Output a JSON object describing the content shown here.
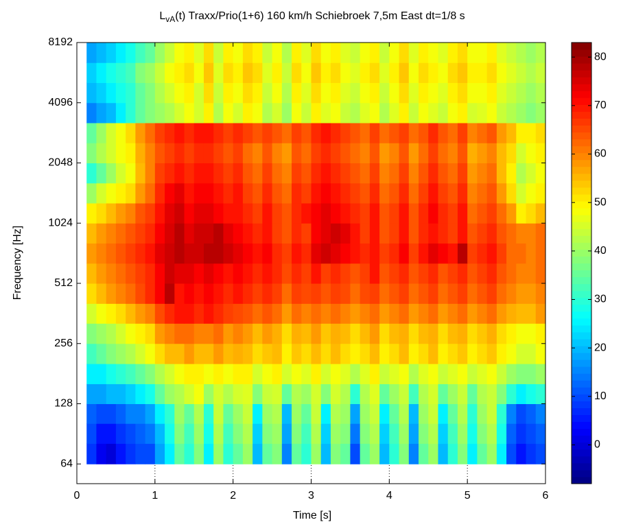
{
  "chart_data": {
    "type": "heatmap",
    "title": {
      "main": "L",
      "sub": "vA",
      "rest": "(t) Traxx/Prio(1+6) 160 km/h Schiebroek 7,5m East dt=1/8 s"
    },
    "x_label": "Time [s]",
    "y_label": "Frequency [Hz]",
    "colormap": "jet",
    "y_scale": "log",
    "xlim": [
      0,
      6
    ],
    "xticks": [
      0,
      1,
      2,
      3,
      4,
      5,
      6
    ],
    "ylim": [
      51,
      8192
    ],
    "yticks": [
      64,
      128,
      256,
      512,
      1024,
      2048,
      4096,
      8192
    ],
    "clim": [
      -8,
      83
    ],
    "cticks": [
      0,
      10,
      20,
      30,
      40,
      50,
      60,
      70,
      80
    ],
    "x_edges": [
      0.125,
      0.25,
      0.375,
      0.5,
      0.625,
      0.75,
      0.875,
      1,
      1.125,
      1.25,
      1.375,
      1.5,
      1.625,
      1.75,
      1.875,
      2,
      2.125,
      2.25,
      2.375,
      2.5,
      2.625,
      2.75,
      2.875,
      3,
      3.125,
      3.25,
      3.375,
      3.5,
      3.625,
      3.75,
      3.875,
      4,
      4.125,
      4.25,
      4.375,
      4.5,
      4.625,
      4.75,
      4.875,
      5,
      5.125,
      5.25,
      5.375,
      5.5,
      5.625,
      5.75,
      5.875,
      6
    ],
    "y_edges": [
      64,
      81,
      102,
      128,
      161,
      203,
      256,
      323,
      406,
      512,
      645,
      813,
      1024,
      1290,
      1625,
      2048,
      2580,
      3251,
      4096,
      5161,
      6502,
      8192
    ],
    "z": [
      [
        8,
        2,
        0,
        5,
        8,
        10,
        10,
        18,
        25,
        35,
        30,
        38,
        25,
        40,
        30,
        35,
        40,
        20,
        35,
        38,
        15,
        35,
        30,
        40,
        20,
        38,
        35,
        10,
        35,
        40,
        20,
        30,
        38,
        15,
        35,
        40,
        20,
        30,
        38,
        25,
        35,
        40,
        25,
        10,
        5,
        8,
        10
      ],
      [
        10,
        5,
        5,
        8,
        10,
        12,
        14,
        20,
        28,
        38,
        32,
        40,
        28,
        42,
        32,
        38,
        42,
        22,
        38,
        40,
        18,
        38,
        32,
        42,
        22,
        40,
        38,
        14,
        38,
        42,
        22,
        32,
        40,
        18,
        38,
        42,
        22,
        32,
        40,
        28,
        38,
        42,
        28,
        12,
        8,
        10,
        12
      ],
      [
        12,
        10,
        10,
        12,
        15,
        15,
        18,
        25,
        30,
        40,
        35,
        42,
        30,
        44,
        35,
        40,
        44,
        25,
        40,
        42,
        20,
        40,
        35,
        44,
        25,
        42,
        40,
        18,
        40,
        44,
        25,
        35,
        42,
        20,
        40,
        44,
        25,
        35,
        42,
        30,
        40,
        44,
        30,
        15,
        10,
        12,
        15
      ],
      [
        18,
        18,
        20,
        20,
        22,
        25,
        28,
        35,
        40,
        42,
        45,
        48,
        40,
        45,
        42,
        45,
        46,
        38,
        44,
        45,
        35,
        42,
        40,
        45,
        38,
        45,
        42,
        30,
        42,
        46,
        35,
        40,
        44,
        32,
        42,
        45,
        35,
        40,
        44,
        35,
        42,
        44,
        38,
        30,
        25,
        28,
        30
      ],
      [
        25,
        25,
        28,
        30,
        32,
        35,
        38,
        42,
        45,
        48,
        50,
        50,
        48,
        50,
        48,
        50,
        50,
        45,
        48,
        50,
        45,
        48,
        46,
        50,
        45,
        48,
        46,
        42,
        46,
        50,
        44,
        46,
        48,
        42,
        46,
        48,
        44,
        46,
        48,
        44,
        46,
        48,
        44,
        40,
        38,
        38,
        40
      ],
      [
        32,
        35,
        38,
        40,
        42,
        45,
        48,
        52,
        55,
        55,
        58,
        55,
        55,
        58,
        55,
        56,
        55,
        52,
        54,
        55,
        50,
        54,
        52,
        55,
        52,
        55,
        52,
        50,
        52,
        55,
        50,
        52,
        55,
        50,
        52,
        55,
        50,
        52,
        54,
        50,
        52,
        54,
        50,
        48,
        45,
        45,
        48
      ],
      [
        38,
        40,
        42,
        45,
        48,
        50,
        52,
        58,
        60,
        62,
        62,
        60,
        60,
        62,
        58,
        60,
        58,
        55,
        58,
        56,
        52,
        56,
        55,
        58,
        54,
        56,
        55,
        52,
        55,
        58,
        52,
        55,
        56,
        52,
        55,
        56,
        52,
        55,
        56,
        52,
        54,
        56,
        52,
        50,
        48,
        48,
        50
      ],
      [
        45,
        48,
        50,
        52,
        55,
        58,
        60,
        65,
        68,
        70,
        70,
        68,
        70,
        68,
        66,
        65,
        64,
        62,
        64,
        62,
        58,
        62,
        60,
        62,
        60,
        62,
        60,
        58,
        60,
        62,
        58,
        60,
        62,
        58,
        60,
        62,
        58,
        60,
        62,
        58,
        60,
        62,
        58,
        56,
        55,
        55,
        58
      ],
      [
        52,
        55,
        58,
        60,
        62,
        65,
        68,
        72,
        78,
        70,
        72,
        70,
        72,
        70,
        68,
        70,
        68,
        66,
        68,
        66,
        62,
        66,
        65,
        66,
        64,
        66,
        65,
        62,
        65,
        66,
        62,
        64,
        66,
        62,
        64,
        66,
        62,
        64,
        66,
        62,
        64,
        66,
        62,
        60,
        58,
        58,
        60
      ],
      [
        55,
        58,
        60,
        62,
        64,
        66,
        68,
        72,
        76,
        74,
        74,
        72,
        74,
        72,
        70,
        72,
        70,
        68,
        70,
        68,
        65,
        68,
        66,
        70,
        66,
        68,
        66,
        64,
        66,
        70,
        64,
        66,
        68,
        64,
        66,
        68,
        64,
        66,
        68,
        64,
        66,
        68,
        64,
        62,
        60,
        60,
        62
      ],
      [
        58,
        60,
        62,
        64,
        66,
        68,
        70,
        74,
        76,
        78,
        76,
        76,
        78,
        78,
        76,
        74,
        72,
        70,
        72,
        68,
        66,
        70,
        68,
        74,
        76,
        74,
        72,
        70,
        68,
        70,
        66,
        68,
        72,
        66,
        70,
        74,
        72,
        70,
        78,
        66,
        68,
        70,
        66,
        62,
        62,
        60,
        62
      ],
      [
        55,
        58,
        60,
        62,
        64,
        66,
        68,
        72,
        75,
        78,
        74,
        76,
        76,
        78,
        74,
        72,
        70,
        68,
        70,
        66,
        64,
        68,
        66,
        72,
        74,
        76,
        74,
        70,
        66,
        70,
        64,
        66,
        70,
        64,
        68,
        70,
        68,
        66,
        70,
        64,
        66,
        68,
        64,
        62,
        60,
        60,
        62
      ],
      [
        50,
        52,
        55,
        58,
        60,
        64,
        66,
        70,
        74,
        76,
        72,
        74,
        74,
        72,
        70,
        70,
        68,
        66,
        70,
        66,
        64,
        68,
        70,
        72,
        74,
        72,
        70,
        68,
        66,
        70,
        64,
        66,
        70,
        64,
        68,
        72,
        68,
        66,
        70,
        62,
        64,
        66,
        62,
        58,
        50,
        52,
        55
      ],
      [
        40,
        45,
        48,
        50,
        52,
        58,
        62,
        68,
        72,
        74,
        70,
        72,
        72,
        70,
        68,
        70,
        66,
        64,
        68,
        64,
        62,
        68,
        66,
        70,
        72,
        70,
        68,
        66,
        64,
        68,
        62,
        64,
        68,
        62,
        66,
        70,
        66,
        64,
        68,
        60,
        62,
        64,
        58,
        52,
        45,
        48,
        50
      ],
      [
        30,
        35,
        40,
        45,
        48,
        55,
        60,
        66,
        68,
        70,
        68,
        70,
        70,
        68,
        66,
        68,
        64,
        62,
        66,
        62,
        60,
        66,
        64,
        68,
        70,
        68,
        66,
        64,
        62,
        66,
        60,
        62,
        66,
        60,
        64,
        68,
        64,
        62,
        66,
        58,
        60,
        62,
        55,
        50,
        42,
        45,
        48
      ],
      [
        38,
        42,
        45,
        48,
        50,
        56,
        60,
        64,
        66,
        68,
        66,
        68,
        68,
        66,
        64,
        66,
        62,
        60,
        64,
        60,
        58,
        64,
        62,
        66,
        68,
        66,
        64,
        62,
        60,
        64,
        58,
        60,
        64,
        58,
        62,
        66,
        62,
        60,
        64,
        56,
        58,
        60,
        55,
        52,
        45,
        48,
        50
      ],
      [
        35,
        40,
        45,
        48,
        52,
        58,
        62,
        66,
        68,
        70,
        68,
        70,
        70,
        68,
        66,
        68,
        66,
        64,
        66,
        64,
        62,
        66,
        64,
        68,
        70,
        68,
        66,
        64,
        62,
        66,
        62,
        64,
        66,
        62,
        64,
        68,
        64,
        62,
        66,
        60,
        62,
        64,
        58,
        55,
        50,
        50,
        52
      ],
      [
        15,
        18,
        20,
        25,
        30,
        35,
        38,
        40,
        42,
        45,
        48,
        45,
        50,
        42,
        48,
        45,
        50,
        48,
        42,
        45,
        40,
        48,
        44,
        50,
        46,
        48,
        44,
        42,
        46,
        48,
        42,
        46,
        50,
        44,
        48,
        46,
        44,
        48,
        50,
        45,
        46,
        48,
        44,
        42,
        40,
        38,
        40
      ],
      [
        20,
        22,
        25,
        28,
        30,
        35,
        38,
        42,
        45,
        48,
        50,
        45,
        52,
        44,
        50,
        48,
        52,
        50,
        44,
        48,
        42,
        50,
        46,
        52,
        48,
        50,
        46,
        44,
        48,
        50,
        44,
        48,
        52,
        46,
        50,
        48,
        46,
        50,
        52,
        48,
        48,
        50,
        46,
        44,
        42,
        40,
        42
      ],
      [
        22,
        25,
        28,
        30,
        32,
        38,
        40,
        44,
        48,
        50,
        52,
        48,
        54,
        46,
        52,
        50,
        54,
        52,
        46,
        50,
        44,
        52,
        48,
        54,
        50,
        52,
        48,
        46,
        50,
        52,
        46,
        50,
        54,
        48,
        52,
        50,
        48,
        52,
        54,
        50,
        50,
        52,
        48,
        46,
        44,
        42,
        44
      ],
      [
        18,
        20,
        22,
        25,
        28,
        32,
        35,
        40,
        44,
        48,
        50,
        46,
        52,
        44,
        50,
        48,
        52,
        50,
        44,
        48,
        42,
        50,
        46,
        52,
        48,
        50,
        46,
        44,
        48,
        50,
        44,
        48,
        52,
        46,
        50,
        48,
        46,
        50,
        52,
        48,
        48,
        50,
        46,
        44,
        42,
        40,
        42
      ]
    ]
  }
}
